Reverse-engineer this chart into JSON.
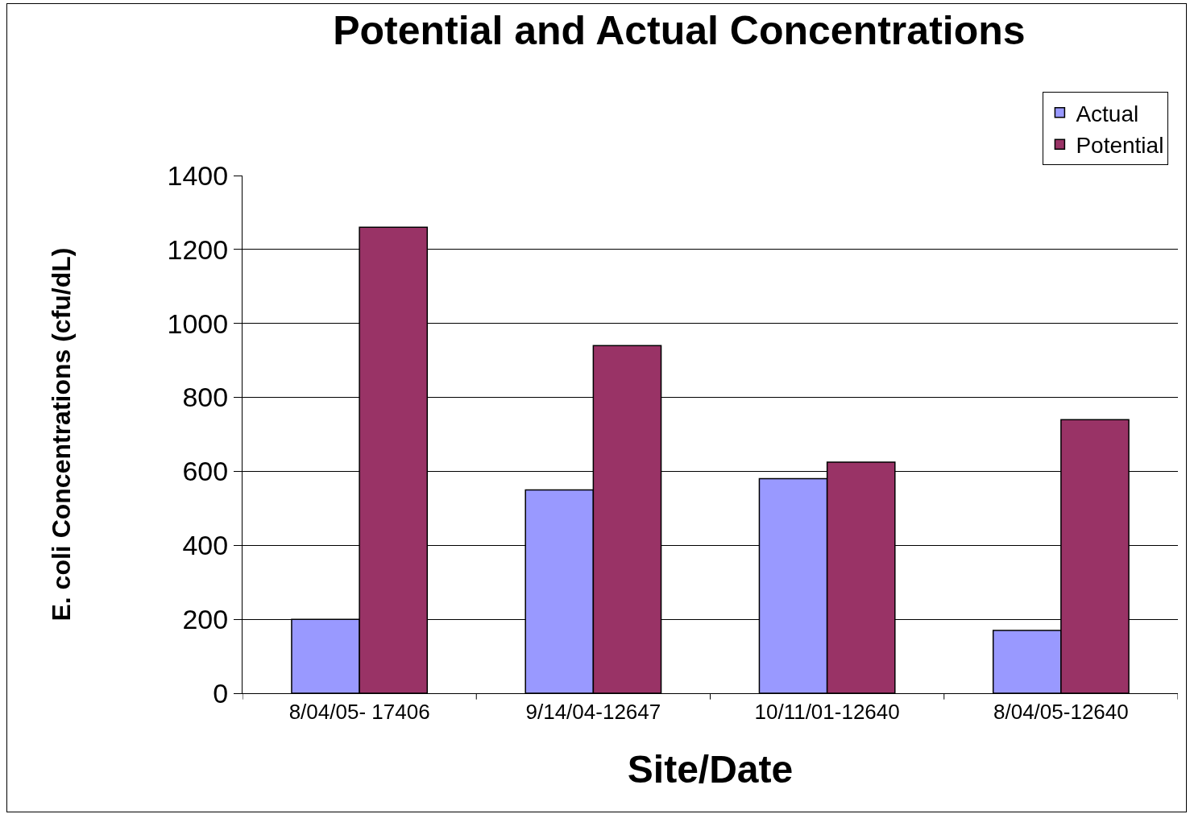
{
  "chart_data": {
    "type": "bar",
    "title": "Potential and Actual Concentrations",
    "xlabel": "Site/Date",
    "ylabel": "E. coli Concentrations (cfu/dL)",
    "categories": [
      "8/04/05- 17406",
      "9/14/04-12647",
      "10/11/01-12640",
      "8/04/05-12640"
    ],
    "series": [
      {
        "name": "Actual",
        "color": "#9999ff",
        "values": [
          200,
          550,
          580,
          170
        ]
      },
      {
        "name": "Potential",
        "color": "#993366",
        "values": [
          1260,
          940,
          625,
          740
        ]
      }
    ],
    "ylim": [
      0,
      1400
    ],
    "yticks": [
      0,
      200,
      400,
      600,
      800,
      1000,
      1200,
      1400
    ],
    "grid": "y",
    "legend": "top right"
  }
}
